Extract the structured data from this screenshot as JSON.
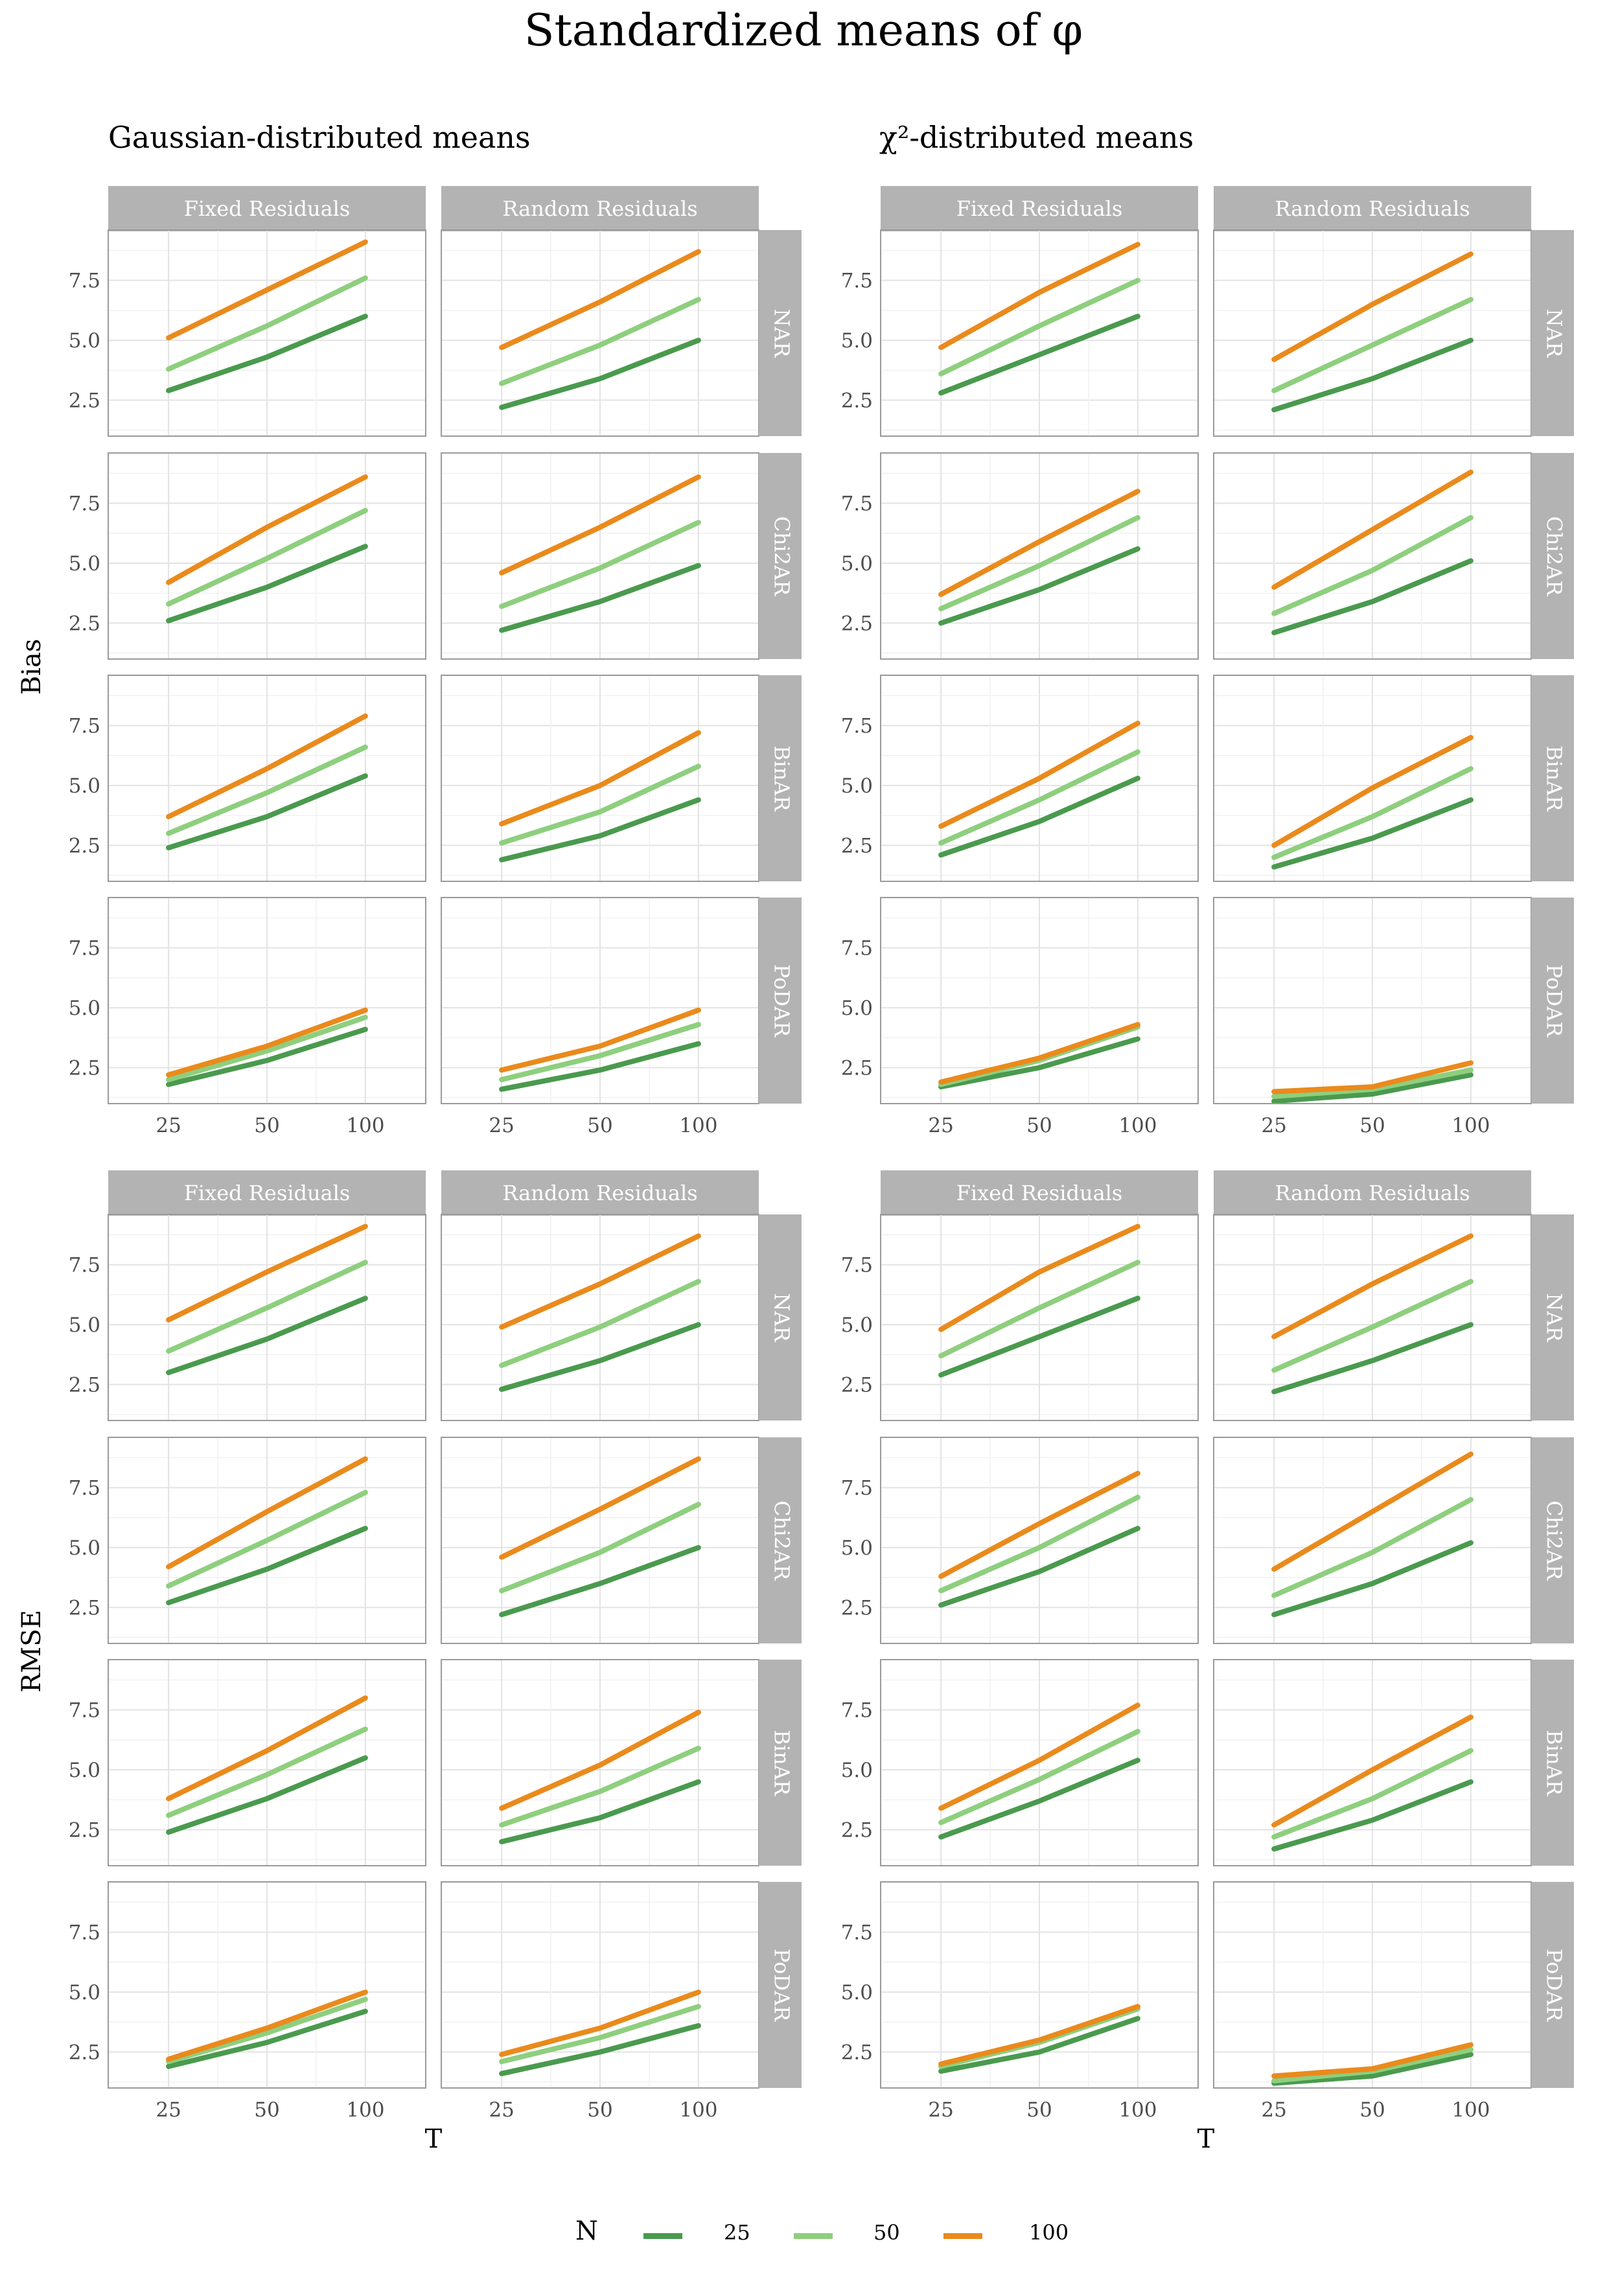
{
  "title": "Standardized means of φ",
  "column_titles": [
    "Gaussian-distributed means",
    "χ²-distributed means"
  ],
  "strip_columns": [
    "Fixed Residuals",
    "Random Residuals"
  ],
  "strip_rows": [
    "NAR",
    "Chi2AR",
    "BinAR",
    "PoDAR"
  ],
  "x_label": "T",
  "y_labels": [
    "Bias",
    "RMSE"
  ],
  "legend": {
    "title": "N",
    "entries": [
      {
        "label": "25",
        "color": "#4a9a4e"
      },
      {
        "label": "50",
        "color": "#8ecf7e"
      },
      {
        "label": "100",
        "color": "#ea8a1c"
      }
    ]
  },
  "chart_data": {
    "type": "line",
    "x": [
      "25",
      "50",
      "100"
    ],
    "y_ticks": [
      "2.5",
      "5.0",
      "7.5"
    ],
    "ylim": [
      1.0,
      9.6
    ],
    "grid": true,
    "legend_placement": "bottom",
    "series_names": [
      "25",
      "50",
      "100"
    ],
    "panels": {
      "Bias": {
        "Gaussian-distributed means": {
          "Fixed Residuals": {
            "NAR": [
              [
                2.9,
                4.3,
                6.0
              ],
              [
                3.8,
                5.6,
                7.6
              ],
              [
                5.1,
                7.1,
                9.1
              ]
            ],
            "Chi2AR": [
              [
                2.6,
                4.0,
                5.7
              ],
              [
                3.3,
                5.2,
                7.2
              ],
              [
                4.2,
                6.5,
                8.6
              ]
            ],
            "BinAR": [
              [
                2.4,
                3.7,
                5.4
              ],
              [
                3.0,
                4.7,
                6.6
              ],
              [
                3.7,
                5.7,
                7.9
              ]
            ],
            "PoDAR": [
              [
                1.8,
                2.8,
                4.1
              ],
              [
                2.0,
                3.2,
                4.6
              ],
              [
                2.2,
                3.4,
                4.9
              ]
            ]
          },
          "Random Residuals": {
            "NAR": [
              [
                2.2,
                3.4,
                5.0
              ],
              [
                3.2,
                4.8,
                6.7
              ],
              [
                4.7,
                6.6,
                8.7
              ]
            ],
            "Chi2AR": [
              [
                2.2,
                3.4,
                4.9
              ],
              [
                3.2,
                4.8,
                6.7
              ],
              [
                4.6,
                6.5,
                8.6
              ]
            ],
            "BinAR": [
              [
                1.9,
                2.9,
                4.4
              ],
              [
                2.6,
                3.9,
                5.8
              ],
              [
                3.4,
                5.0,
                7.2
              ]
            ],
            "PoDAR": [
              [
                1.6,
                2.4,
                3.5
              ],
              [
                2.0,
                3.0,
                4.3
              ],
              [
                2.4,
                3.4,
                4.9
              ]
            ]
          }
        },
        "χ²-distributed means": {
          "Fixed Residuals": {
            "NAR": [
              [
                2.8,
                4.4,
                6.0
              ],
              [
                3.6,
                5.6,
                7.5
              ],
              [
                4.7,
                7.0,
                9.0
              ]
            ],
            "Chi2AR": [
              [
                2.5,
                3.9,
                5.6
              ],
              [
                3.1,
                4.9,
                6.9
              ],
              [
                3.7,
                5.9,
                8.0
              ]
            ],
            "BinAR": [
              [
                2.1,
                3.5,
                5.3
              ],
              [
                2.6,
                4.4,
                6.4
              ],
              [
                3.3,
                5.3,
                7.6
              ]
            ],
            "PoDAR": [
              [
                1.7,
                2.5,
                3.7
              ],
              [
                1.8,
                2.8,
                4.2
              ],
              [
                1.9,
                2.9,
                4.3
              ]
            ]
          },
          "Random Residuals": {
            "NAR": [
              [
                2.1,
                3.4,
                5.0
              ],
              [
                2.9,
                4.8,
                6.7
              ],
              [
                4.2,
                6.5,
                8.6
              ]
            ],
            "Chi2AR": [
              [
                2.1,
                3.4,
                5.1
              ],
              [
                2.9,
                4.7,
                6.9
              ],
              [
                4.0,
                6.4,
                8.8
              ]
            ],
            "BinAR": [
              [
                1.6,
                2.8,
                4.4
              ],
              [
                2.0,
                3.7,
                5.7
              ],
              [
                2.5,
                4.9,
                7.0
              ]
            ],
            "PoDAR": [
              [
                1.1,
                1.4,
                2.2
              ],
              [
                1.3,
                1.6,
                2.4
              ],
              [
                1.5,
                1.7,
                2.7
              ]
            ]
          }
        }
      },
      "RMSE": {
        "Gaussian-distributed means": {
          "Fixed Residuals": {
            "NAR": [
              [
                3.0,
                4.4,
                6.1
              ],
              [
                3.9,
                5.7,
                7.6
              ],
              [
                5.2,
                7.2,
                9.1
              ]
            ],
            "Chi2AR": [
              [
                2.7,
                4.1,
                5.8
              ],
              [
                3.4,
                5.3,
                7.3
              ],
              [
                4.2,
                6.5,
                8.7
              ]
            ],
            "BinAR": [
              [
                2.4,
                3.8,
                5.5
              ],
              [
                3.1,
                4.8,
                6.7
              ],
              [
                3.8,
                5.8,
                8.0
              ]
            ],
            "PoDAR": [
              [
                1.9,
                2.9,
                4.2
              ],
              [
                2.1,
                3.3,
                4.7
              ],
              [
                2.2,
                3.5,
                5.0
              ]
            ]
          },
          "Random Residuals": {
            "NAR": [
              [
                2.3,
                3.5,
                5.0
              ],
              [
                3.3,
                4.9,
                6.8
              ],
              [
                4.9,
                6.7,
                8.7
              ]
            ],
            "Chi2AR": [
              [
                2.2,
                3.5,
                5.0
              ],
              [
                3.2,
                4.8,
                6.8
              ],
              [
                4.6,
                6.6,
                8.7
              ]
            ],
            "BinAR": [
              [
                2.0,
                3.0,
                4.5
              ],
              [
                2.7,
                4.1,
                5.9
              ],
              [
                3.4,
                5.2,
                7.4
              ]
            ],
            "PoDAR": [
              [
                1.6,
                2.5,
                3.6
              ],
              [
                2.1,
                3.1,
                4.4
              ],
              [
                2.4,
                3.5,
                5.0
              ]
            ]
          }
        },
        "χ²-distributed means": {
          "Fixed Residuals": {
            "NAR": [
              [
                2.9,
                4.5,
                6.1
              ],
              [
                3.7,
                5.7,
                7.6
              ],
              [
                4.8,
                7.2,
                9.1
              ]
            ],
            "Chi2AR": [
              [
                2.6,
                4.0,
                5.8
              ],
              [
                3.2,
                5.0,
                7.1
              ],
              [
                3.8,
                6.0,
                8.1
              ]
            ],
            "BinAR": [
              [
                2.2,
                3.7,
                5.4
              ],
              [
                2.8,
                4.6,
                6.6
              ],
              [
                3.4,
                5.4,
                7.7
              ]
            ],
            "PoDAR": [
              [
                1.7,
                2.5,
                3.9
              ],
              [
                1.9,
                2.9,
                4.3
              ],
              [
                2.0,
                3.0,
                4.4
              ]
            ]
          },
          "Random Residuals": {
            "NAR": [
              [
                2.2,
                3.5,
                5.0
              ],
              [
                3.1,
                4.9,
                6.8
              ],
              [
                4.5,
                6.7,
                8.7
              ]
            ],
            "Chi2AR": [
              [
                2.2,
                3.5,
                5.2
              ],
              [
                3.0,
                4.8,
                7.0
              ],
              [
                4.1,
                6.5,
                8.9
              ]
            ],
            "BinAR": [
              [
                1.7,
                2.9,
                4.5
              ],
              [
                2.2,
                3.8,
                5.8
              ],
              [
                2.7,
                5.0,
                7.2
              ]
            ],
            "PoDAR": [
              [
                1.2,
                1.5,
                2.4
              ],
              [
                1.3,
                1.7,
                2.6
              ],
              [
                1.5,
                1.8,
                2.8
              ]
            ]
          }
        }
      }
    }
  }
}
